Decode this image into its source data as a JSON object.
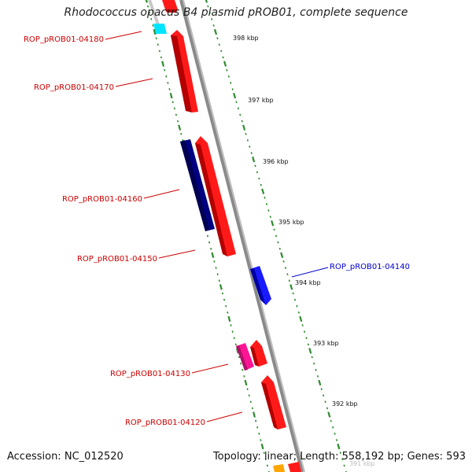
{
  "title": "Rhodococcus opacus B4 plasmid pROB01, complete sequence",
  "footer": {
    "accession_label": "Accession:",
    "accession": "NC_012520",
    "topology_label": "Topology:",
    "topology": "linear",
    "length_label": "Length:",
    "length": "558,192 bp",
    "genes_label": "Genes:",
    "genes": "593"
  },
  "colors": {
    "backbone": "#8a8a8a",
    "tick": "#2e8b2e",
    "gene_label_red": "#cc0000",
    "gene_label_blue": "#0000cc"
  },
  "scale_ticks": [
    {
      "label": "398 kbp"
    },
    {
      "label": "397 kbp"
    },
    {
      "label": "396 kbp"
    },
    {
      "label": "395 kbp"
    },
    {
      "label": "394 kbp"
    },
    {
      "label": "393 kbp"
    },
    {
      "label": "392 kbp"
    },
    {
      "label": "391 kbp"
    }
  ],
  "genes": [
    {
      "label": "ROP_pROB01-04180",
      "color": "#ff1a1a"
    },
    {
      "label": "ROP_pROB01-04170",
      "color": "#ff1a1a"
    },
    {
      "label": "ROP_pROB01-04160",
      "color": "#000080"
    },
    {
      "label": "ROP_pROB01-04150",
      "color": "#ff1a1a"
    },
    {
      "label": "ROP_pROB01-04140",
      "color": "#1a1aff"
    },
    {
      "label": "ROP_pROB01-04130",
      "color": "#ff1493"
    },
    {
      "label": "ROP_pROB01-04120",
      "color": "#ff1a1a"
    }
  ],
  "unlabeled_features": [
    {
      "color": "#00e5ff"
    },
    {
      "color": "#ff1a1a"
    },
    {
      "color": "#ff1a1a"
    },
    {
      "color": "#ffa500"
    }
  ]
}
